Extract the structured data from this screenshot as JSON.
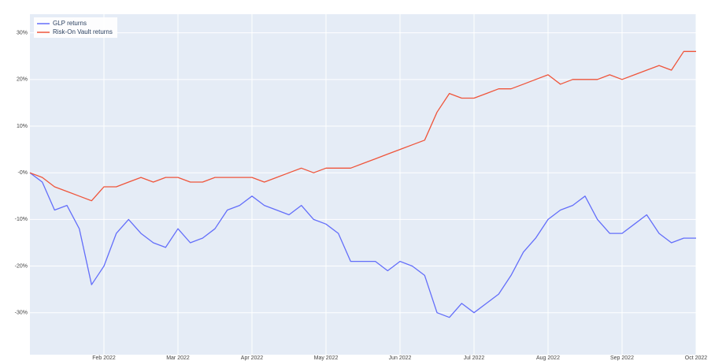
{
  "chart_data": {
    "type": "line",
    "x": [
      null,
      null,
      null,
      null,
      null,
      null,
      "Feb 2022",
      null,
      null,
      null,
      null,
      null,
      "Mar 2022",
      null,
      null,
      null,
      null,
      null,
      "Apr 2022",
      null,
      null,
      null,
      null,
      null,
      "May 2022",
      null,
      null,
      null,
      null,
      null,
      "Jun 2022",
      null,
      null,
      null,
      null,
      null,
      "Jul 2022",
      null,
      null,
      null,
      null,
      null,
      "Aug 2022",
      null,
      null,
      null,
      null,
      null,
      "Sep 2022",
      null,
      null,
      null,
      null,
      null,
      "Oct 2022"
    ],
    "series": [
      {
        "name": "GLP returns",
        "color": "#636efa",
        "values": [
          0,
          -2,
          -8,
          -7,
          -12,
          -24,
          -20,
          -13,
          -10,
          -13,
          -15,
          -16,
          -12,
          -15,
          -14,
          -12,
          -8,
          -7,
          -5,
          -7,
          -8,
          -9,
          -7,
          -10,
          -11,
          -13,
          -19,
          -19,
          -19,
          -21,
          -19,
          -20,
          -22,
          -30,
          -31,
          -28,
          -30,
          -28,
          -26,
          -22,
          -17,
          -14,
          -10,
          -8,
          -7,
          -5,
          -10,
          -13,
          -13,
          -11,
          -9,
          -13,
          -15,
          -14,
          -14
        ]
      },
      {
        "name": "Risk-On Vault returns",
        "color": "#ef553b",
        "values": [
          0,
          -1,
          -3,
          -4,
          -5,
          -6,
          -3,
          -3,
          -2,
          -1,
          -2,
          -1,
          -1,
          -2,
          -2,
          -1,
          -1,
          -1,
          -1,
          -2,
          -1,
          0,
          1,
          0,
          1,
          1,
          1,
          2,
          3,
          4,
          5,
          6,
          7,
          13,
          17,
          16,
          16,
          17,
          18,
          18,
          19,
          20,
          21,
          19,
          20,
          20,
          20,
          21,
          20,
          21,
          22,
          23,
          22,
          26,
          26
        ]
      }
    ],
    "ylim": [
      -39,
      34
    ],
    "yticks": [
      {
        "value": 30,
        "label": "30%"
      },
      {
        "value": 20,
        "label": "20%"
      },
      {
        "value": 10,
        "label": "10%"
      },
      {
        "value": 0,
        "label": "-0%"
      },
      {
        "value": -10,
        "label": "-10%"
      },
      {
        "value": -20,
        "label": "-20%"
      },
      {
        "value": -30,
        "label": "-30%"
      }
    ],
    "grid": true,
    "legend": "top-left"
  }
}
